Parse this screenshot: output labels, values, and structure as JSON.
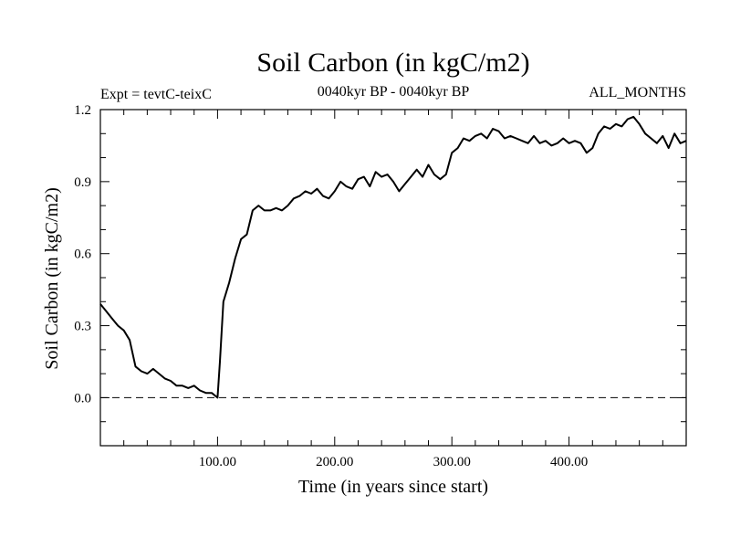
{
  "chart_data": {
    "type": "line",
    "title": "Soil Carbon (in kgC/m2)",
    "subtitle": "0040kyr BP - 0040kyr BP",
    "left_label": "Expt = tevtC-teixC",
    "right_label": "ALL_MONTHS",
    "xlabel": "Time (in years since start)",
    "ylabel": "Soil Carbon (in kgC/m2)",
    "xlim": [
      0,
      500
    ],
    "ylim": [
      -0.2,
      1.2
    ],
    "xticks_labeled": [
      100,
      200,
      300,
      400
    ],
    "xtick_labels": [
      "100.00",
      "200.00",
      "300.00",
      "400.00"
    ],
    "yticks_labeled": [
      0.0,
      0.3,
      0.6,
      0.9,
      1.2
    ],
    "ytick_labels": [
      "0.0",
      "0.3",
      "0.6",
      "0.9",
      "1.2"
    ],
    "reference_line": {
      "y": 0.0,
      "style": "dashed"
    },
    "grid": false,
    "series": [
      {
        "x": [
          0,
          5,
          10,
          15,
          20,
          25,
          30,
          35,
          40,
          45,
          50,
          55,
          60,
          65,
          70,
          75,
          80,
          85,
          90,
          95,
          100,
          102,
          105,
          110,
          115,
          120,
          125,
          130,
          135,
          140,
          145,
          150,
          155,
          160,
          165,
          170,
          175,
          180,
          185,
          190,
          195,
          200,
          205,
          210,
          215,
          220,
          225,
          230,
          235,
          240,
          245,
          250,
          255,
          260,
          265,
          270,
          275,
          280,
          285,
          290,
          295,
          300,
          305,
          310,
          315,
          320,
          325,
          330,
          335,
          340,
          345,
          350,
          355,
          360,
          365,
          370,
          375,
          380,
          385,
          390,
          395,
          400,
          405,
          410,
          415,
          420,
          425,
          430,
          435,
          440,
          445,
          450,
          455,
          460,
          465,
          470,
          475,
          480,
          485,
          490,
          495,
          500
        ],
        "values": [
          0.39,
          0.36,
          0.33,
          0.3,
          0.28,
          0.24,
          0.13,
          0.11,
          0.1,
          0.12,
          0.1,
          0.08,
          0.07,
          0.05,
          0.05,
          0.04,
          0.05,
          0.03,
          0.02,
          0.02,
          0.0,
          0.15,
          0.4,
          0.48,
          0.58,
          0.66,
          0.68,
          0.78,
          0.8,
          0.78,
          0.78,
          0.79,
          0.78,
          0.8,
          0.83,
          0.84,
          0.86,
          0.85,
          0.87,
          0.84,
          0.83,
          0.86,
          0.9,
          0.88,
          0.87,
          0.91,
          0.92,
          0.88,
          0.94,
          0.92,
          0.93,
          0.9,
          0.86,
          0.89,
          0.92,
          0.95,
          0.92,
          0.97,
          0.93,
          0.91,
          0.93,
          1.02,
          1.04,
          1.08,
          1.07,
          1.09,
          1.1,
          1.08,
          1.12,
          1.11,
          1.08,
          1.09,
          1.08,
          1.07,
          1.06,
          1.09,
          1.06,
          1.07,
          1.05,
          1.06,
          1.08,
          1.06,
          1.07,
          1.06,
          1.02,
          1.04,
          1.1,
          1.13,
          1.12,
          1.14,
          1.13,
          1.16,
          1.17,
          1.14,
          1.1,
          1.08,
          1.06,
          1.09,
          1.04,
          1.1,
          1.06,
          1.07
        ]
      }
    ]
  }
}
